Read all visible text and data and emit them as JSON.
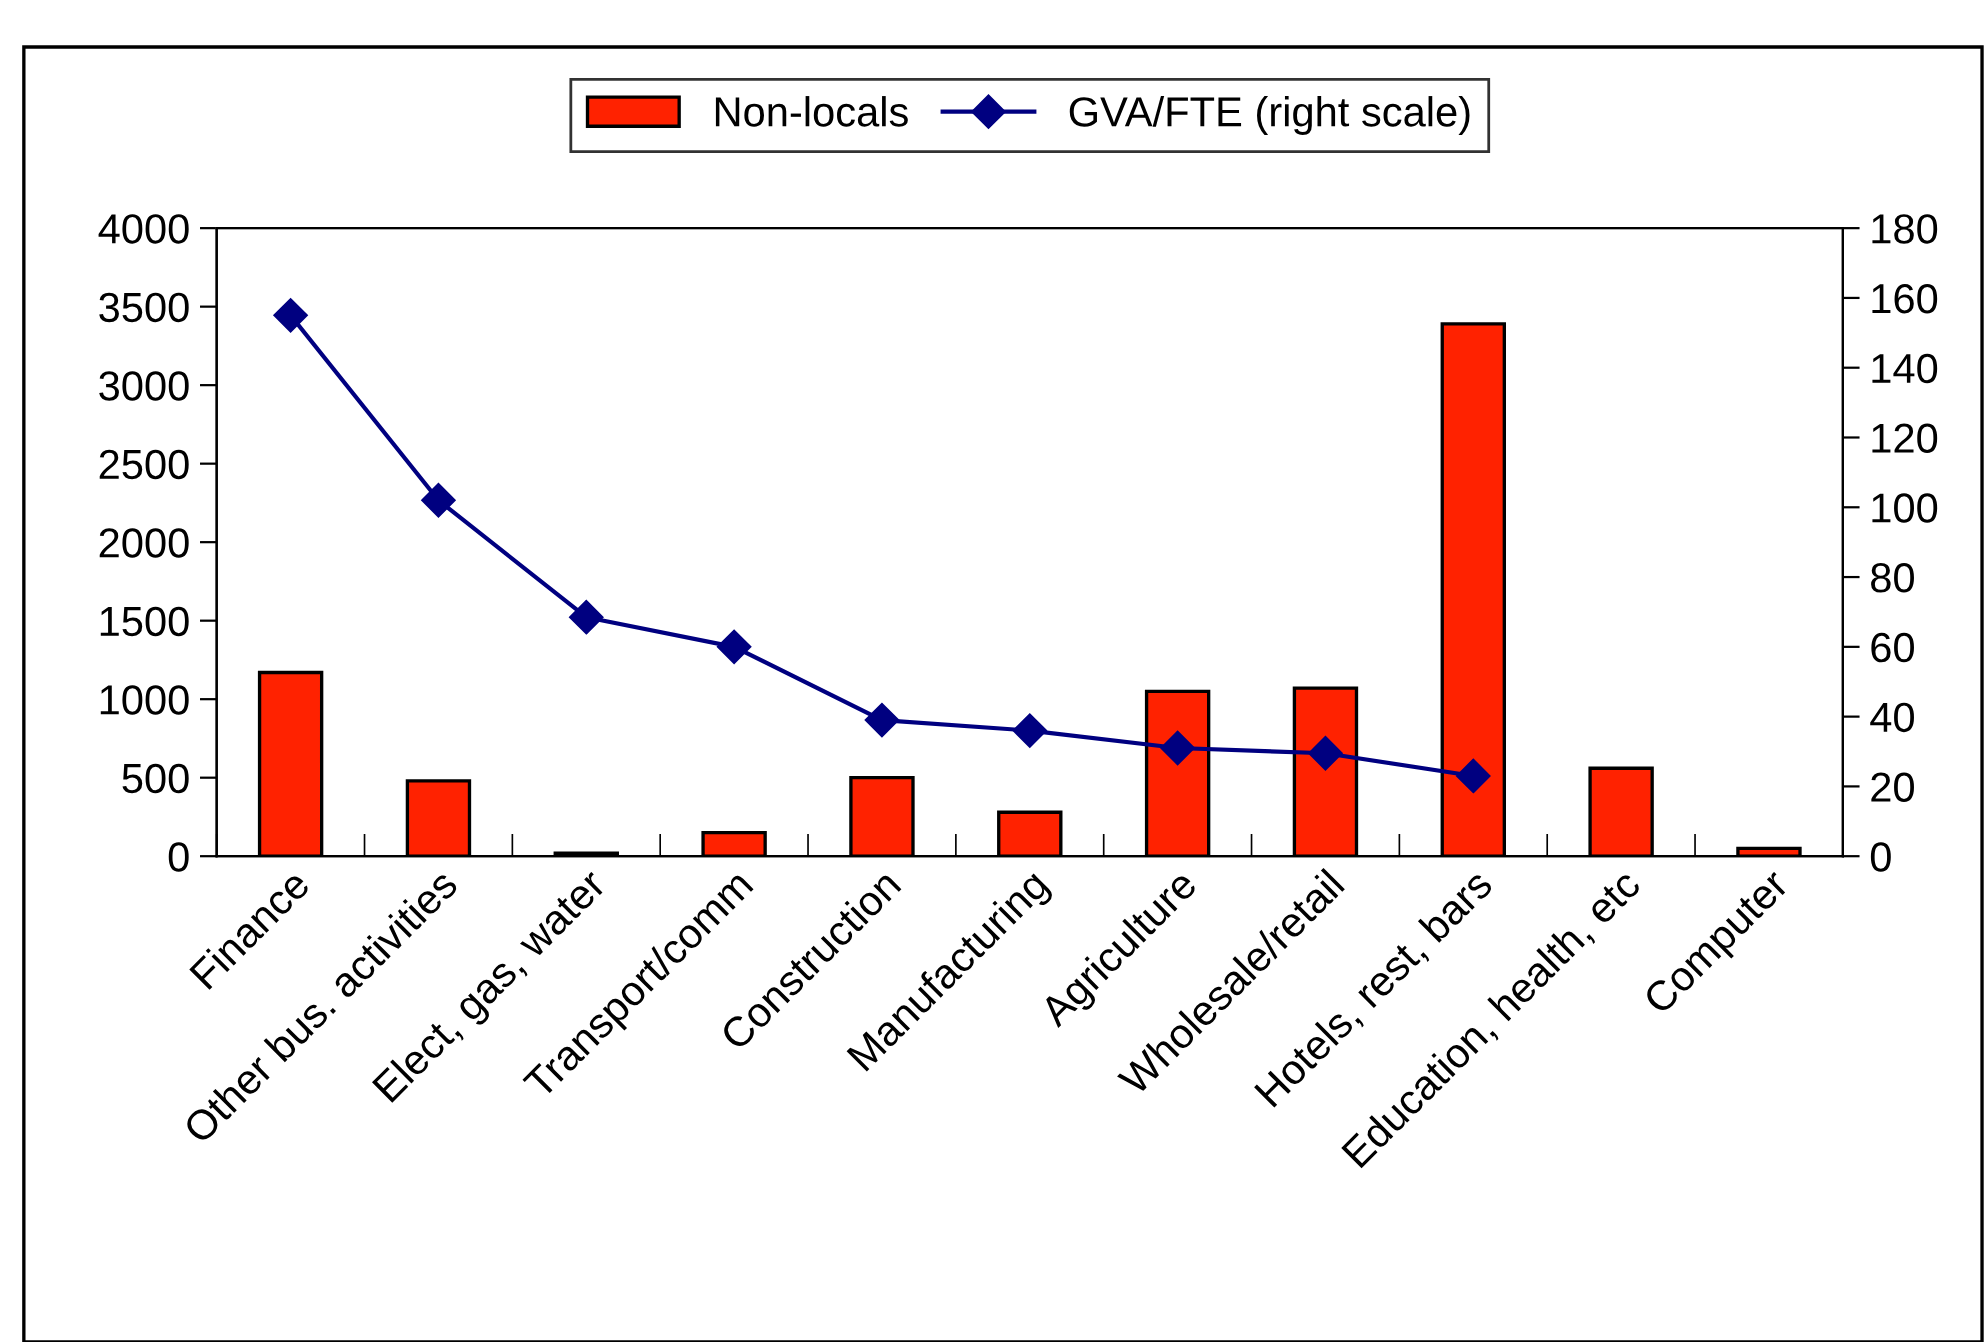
{
  "chart_data": {
    "type": "bar",
    "categories": [
      "Finance",
      "Other bus. activities",
      "Elect, gas, water",
      "Transport/comm",
      "Construction",
      "Manufacturing",
      "Agriculture",
      "Wholesale/retail",
      "Hotels, rest, bars",
      "Education, health, etc",
      "Computer"
    ],
    "series": [
      {
        "name": "Non-locals",
        "color": "#ff2200",
        "values": [
          1170,
          480,
          20,
          150,
          500,
          280,
          1050,
          1070,
          3390,
          560,
          50
        ]
      },
      {
        "name": "GVA/FTE (right scale)",
        "type": "line",
        "axis": "y2",
        "color": "#000080",
        "marker": "diamond",
        "values": [
          155,
          102,
          68.5,
          60,
          39,
          36,
          31,
          29.5,
          23,
          null,
          null
        ]
      }
    ],
    "ylim": [
      0,
      4000
    ],
    "yticks": [
      0,
      500,
      1000,
      1500,
      2000,
      2500,
      3000,
      3500,
      4000
    ],
    "y2lim": [
      0,
      180
    ],
    "y2ticks": [
      0,
      20,
      40,
      60,
      80,
      100,
      120,
      140,
      160,
      180
    ],
    "legend": "top",
    "grid": false
  }
}
